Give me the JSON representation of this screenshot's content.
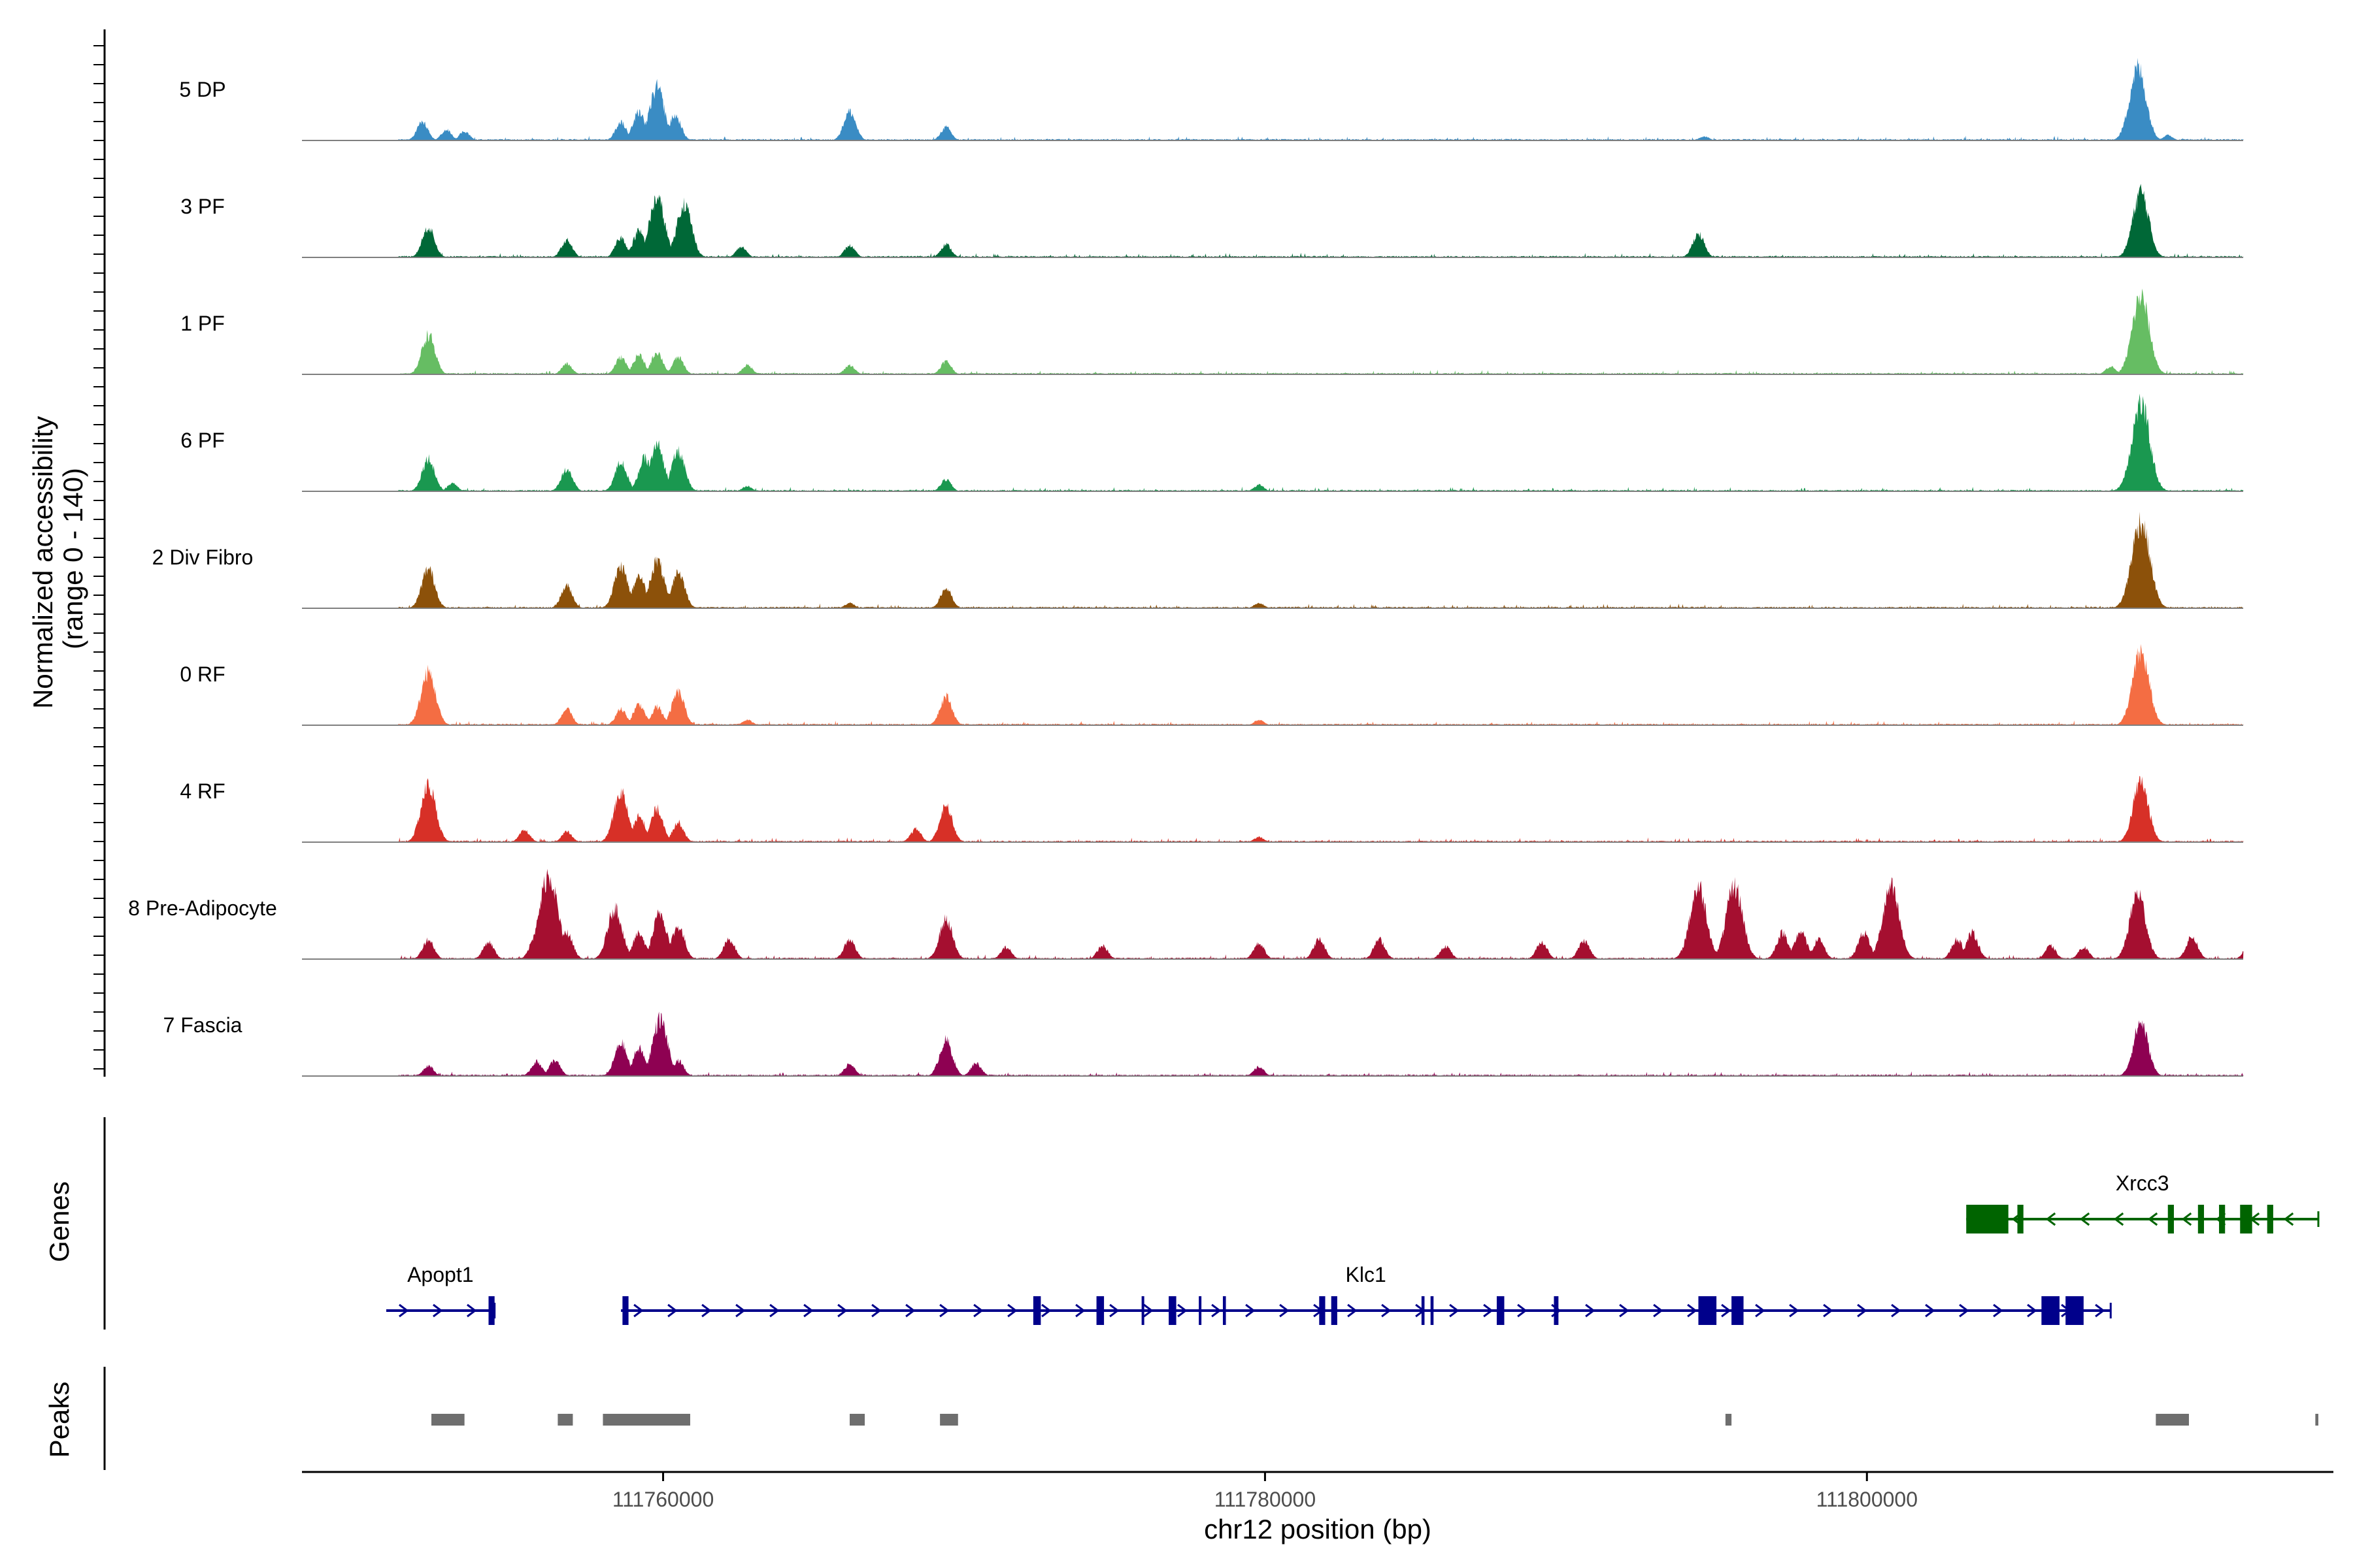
{
  "chart_data": {
    "type": "area",
    "title": "",
    "chromosome": "chr12",
    "xlabel": "chr12 position (bp)",
    "ylabel_line1": "Normalized accessibility",
    "ylabel_line2": "(range 0 - 140)",
    "xlim": [
      111748000,
      111815500
    ],
    "ylim": [
      0,
      140
    ],
    "x_ticks": [
      111760000,
      111780000,
      111800000
    ],
    "x_tick_labels": [
      "111760000",
      "111780000",
      "111800000"
    ],
    "panel_labels": {
      "genes": "Genes",
      "peaks": "Peaks"
    },
    "series": [
      {
        "name": "5 DP",
        "color": "#3A8CC4",
        "peaks": [
          [
            111752000,
            28
          ],
          [
            111752800,
            16
          ],
          [
            111753400,
            14
          ],
          [
            111758600,
            28
          ],
          [
            111759200,
            44
          ],
          [
            111759800,
            80
          ],
          [
            111760400,
            38
          ],
          [
            111766200,
            44
          ],
          [
            111769400,
            20
          ],
          [
            111794600,
            6
          ],
          [
            111809000,
            110
          ],
          [
            111810000,
            8
          ]
        ]
      },
      {
        "name": "3 PF",
        "color": "#006837",
        "peaks": [
          [
            111752200,
            46
          ],
          [
            111756800,
            26
          ],
          [
            111758600,
            30
          ],
          [
            111759200,
            40
          ],
          [
            111759800,
            90
          ],
          [
            111760700,
            82
          ],
          [
            111762600,
            16
          ],
          [
            111766200,
            18
          ],
          [
            111769400,
            20
          ],
          [
            111794400,
            36
          ],
          [
            111809100,
            100
          ],
          [
            111815000,
            12
          ]
        ]
      },
      {
        "name": "1 PF",
        "color": "#66BD63",
        "peaks": [
          [
            111752200,
            60
          ],
          [
            111756800,
            16
          ],
          [
            111758600,
            26
          ],
          [
            111759200,
            30
          ],
          [
            111759800,
            34
          ],
          [
            111760500,
            26
          ],
          [
            111762800,
            14
          ],
          [
            111766200,
            14
          ],
          [
            111769400,
            20
          ],
          [
            111808100,
            12
          ],
          [
            111809100,
            118
          ]
        ]
      },
      {
        "name": "6 PF",
        "color": "#1A9850",
        "peaks": [
          [
            111752200,
            50
          ],
          [
            111753000,
            12
          ],
          [
            111756800,
            34
          ],
          [
            111758600,
            44
          ],
          [
            111759400,
            50
          ],
          [
            111759800,
            70
          ],
          [
            111760500,
            60
          ],
          [
            111762800,
            8
          ],
          [
            111769400,
            18
          ],
          [
            111779800,
            10
          ],
          [
            111809100,
            132
          ]
        ]
      },
      {
        "name": "2 Div Fibro",
        "color": "#8C510A",
        "peaks": [
          [
            111752200,
            60
          ],
          [
            111756800,
            34
          ],
          [
            111758600,
            64
          ],
          [
            111759200,
            50
          ],
          [
            111759800,
            72
          ],
          [
            111760500,
            56
          ],
          [
            111766200,
            8
          ],
          [
            111769400,
            30
          ],
          [
            111779800,
            8
          ],
          [
            111809100,
            132
          ]
        ]
      },
      {
        "name": "0 RF",
        "color": "#F46D43",
        "peaks": [
          [
            111752200,
            80
          ],
          [
            111756800,
            24
          ],
          [
            111758600,
            24
          ],
          [
            111759200,
            32
          ],
          [
            111759800,
            28
          ],
          [
            111760500,
            50
          ],
          [
            111762800,
            8
          ],
          [
            111769400,
            44
          ],
          [
            111779800,
            8
          ],
          [
            111809100,
            110
          ]
        ]
      },
      {
        "name": "4 RF",
        "color": "#D73027",
        "peaks": [
          [
            111752200,
            86
          ],
          [
            111755400,
            18
          ],
          [
            111756800,
            16
          ],
          [
            111758600,
            76
          ],
          [
            111759200,
            40
          ],
          [
            111759800,
            50
          ],
          [
            111760500,
            30
          ],
          [
            111768400,
            20
          ],
          [
            111769400,
            54
          ],
          [
            111779800,
            8
          ],
          [
            111809100,
            92
          ]
        ]
      },
      {
        "name": "8 Pre-Adipocyte",
        "color": "#A50F30",
        "peaks": [
          [
            111752200,
            30
          ],
          [
            111754200,
            26
          ],
          [
            111755800,
            40
          ],
          [
            111756200,
            130
          ],
          [
            111756800,
            40
          ],
          [
            111758400,
            78
          ],
          [
            111759200,
            40
          ],
          [
            111759900,
            70
          ],
          [
            111760500,
            50
          ],
          [
            111762200,
            30
          ],
          [
            111766200,
            30
          ],
          [
            111769400,
            60
          ],
          [
            111771400,
            18
          ],
          [
            111774600,
            20
          ],
          [
            111779800,
            24
          ],
          [
            111781800,
            30
          ],
          [
            111783800,
            30
          ],
          [
            111786000,
            20
          ],
          [
            111789200,
            26
          ],
          [
            111790600,
            28
          ],
          [
            111794400,
            110
          ],
          [
            111795600,
            110
          ],
          [
            111797200,
            40
          ],
          [
            111797800,
            42
          ],
          [
            111798400,
            30
          ],
          [
            111799900,
            40
          ],
          [
            111800800,
            108
          ],
          [
            111803000,
            30
          ],
          [
            111803500,
            40
          ],
          [
            111806100,
            20
          ],
          [
            111807200,
            18
          ],
          [
            111809000,
            100
          ],
          [
            111810800,
            34
          ],
          [
            111812800,
            40
          ],
          [
            111815000,
            16
          ]
        ]
      },
      {
        "name": "7 Fascia",
        "color": "#8E0152",
        "peaks": [
          [
            111752200,
            16
          ],
          [
            111755800,
            22
          ],
          [
            111756400,
            24
          ],
          [
            111758600,
            50
          ],
          [
            111759200,
            42
          ],
          [
            111759900,
            86
          ],
          [
            111760500,
            24
          ],
          [
            111766200,
            18
          ],
          [
            111769400,
            54
          ],
          [
            111770400,
            20
          ],
          [
            111779800,
            14
          ],
          [
            111808900,
            22
          ],
          [
            111809100,
            82
          ],
          [
            111812800,
            8
          ]
        ]
      }
    ],
    "genes": [
      {
        "name": "Apopt1",
        "strand": "+",
        "color": "#00008B",
        "start": 111750800,
        "end": 111754400,
        "exons": [
          [
            111754200,
            111754400
          ]
        ]
      },
      {
        "name": "Klc1",
        "strand": "+",
        "color": "#00008B",
        "start": 111758600,
        "end": 111808100,
        "exons": [
          [
            111758650,
            111758850
          ],
          [
            111772300,
            111772550
          ],
          [
            111774400,
            111774650
          ],
          [
            111775900,
            111775950
          ],
          [
            111776800,
            111777050
          ],
          [
            111777800,
            111777850
          ],
          [
            111778600,
            111778700
          ],
          [
            111781800,
            111782000
          ],
          [
            111782200,
            111782400
          ],
          [
            111785200,
            111785300
          ],
          [
            111785500,
            111785600
          ],
          [
            111787700,
            111787950
          ],
          [
            111789600,
            111789750
          ],
          [
            111794400,
            111795000
          ],
          [
            111795500,
            111795900
          ],
          [
            111805800,
            111806400
          ],
          [
            111806600,
            111807200
          ]
        ]
      },
      {
        "name": "Xrcc3",
        "strand": "-",
        "color": "#006400",
        "start": 111803300,
        "end": 111815000,
        "exons": [
          [
            111803300,
            111804700
          ],
          [
            111805000,
            111805200
          ],
          [
            111810000,
            111810200
          ],
          [
            111811000,
            111811200
          ],
          [
            111811700,
            111811900
          ],
          [
            111812400,
            111812800
          ],
          [
            111813300,
            111813500
          ]
        ]
      }
    ],
    "peaks_track": [
      [
        111752300,
        111753400
      ],
      [
        111756500,
        111757000
      ],
      [
        111758000,
        111760900
      ],
      [
        111766200,
        111766700
      ],
      [
        111769200,
        111769800
      ],
      [
        111795300,
        111795500
      ],
      [
        111809600,
        111810700
      ],
      [
        111814900,
        111815000
      ]
    ]
  }
}
